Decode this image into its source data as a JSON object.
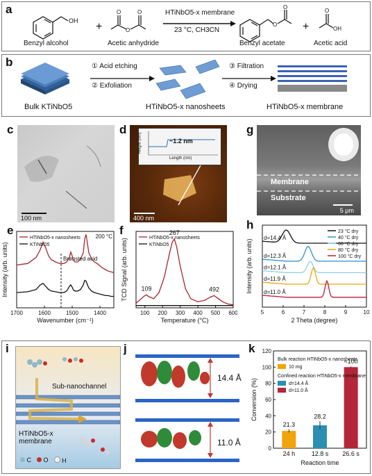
{
  "figure": {
    "panel_letters": [
      "a",
      "b",
      "c",
      "d",
      "e",
      "f",
      "g",
      "h",
      "i",
      "j",
      "k"
    ]
  },
  "panel_a": {
    "catalyst": "HTiNbO5-x membrane",
    "conditions": "23 °C, CH3CN",
    "reactants": [
      "Benzyl alcohol",
      "Acetic anhydride"
    ],
    "products": [
      "Benzyl acetate",
      "Acetic acid"
    ],
    "plus": "+"
  },
  "panel_b": {
    "steps": [
      "① Acid etching",
      "② Exfoliation",
      "③ Filtration",
      "④ Drying"
    ],
    "labels": [
      "Bulk KTiNbO5",
      "HTiNbO5-x nanosheets",
      "HTiNbO5-x membrane"
    ]
  },
  "panel_c": {
    "scale": "100 nm"
  },
  "panel_d": {
    "scale": "400 nm",
    "inset_height": "~1.2 nm",
    "inset_xlabel": "Length (nm)",
    "inset_ylabel": "Height (nm)",
    "inset_xticks": [
      "0",
      "200",
      "400",
      "600",
      "800"
    ],
    "inset_yticks": [
      "0.0",
      "0.5",
      "1.0",
      "1.5"
    ]
  },
  "panel_g": {
    "membrane_label": "Membrane",
    "substrate_label": "Substrate",
    "scale": "5 μm"
  },
  "panel_i": {
    "channel_label": "Sub-nanochannel",
    "membrane_label": "HTiNbO5-x membrane",
    "legend": [
      {
        "symbol": "C",
        "color": "#8fb8c8"
      },
      {
        "symbol": "O",
        "color": "#cc2a2a"
      },
      {
        "symbol": "H",
        "color": "#f2f2f2"
      }
    ]
  },
  "panel_j": {
    "spacings": [
      "14.4 Å",
      "11.0 Å"
    ]
  },
  "chart_data": [
    {
      "panel": "e",
      "type": "line",
      "xlabel": "Wavenumber (cm⁻¹)",
      "ylabel": "Intensity (arb. units)",
      "xlim": [
        1700,
        1350
      ],
      "xticks": [
        1700,
        1600,
        1500,
        1400
      ],
      "annotation": "Brønsted acid",
      "annotation_line_x": 1540,
      "temperature_label": "200 °C",
      "series": [
        {
          "name": "HTiNbO5-x nanosheets",
          "color": "#a5262f",
          "x": [
            1700,
            1660,
            1630,
            1615,
            1605,
            1595,
            1585,
            1575,
            1560,
            1545,
            1530,
            1520,
            1510,
            1505,
            1500,
            1495,
            1490,
            1480,
            1470,
            1460,
            1455,
            1450,
            1445,
            1440,
            1430,
            1420,
            1410,
            1400,
            1390,
            1380,
            1370,
            1360,
            1350
          ],
          "y": [
            0.56,
            0.58,
            0.66,
            0.76,
            0.86,
            0.78,
            0.68,
            0.63,
            0.6,
            0.58,
            0.58,
            0.6,
            0.66,
            0.73,
            0.68,
            0.62,
            0.6,
            0.6,
            0.64,
            0.72,
            0.9,
            0.96,
            0.84,
            0.72,
            0.64,
            0.6,
            0.58,
            0.55,
            0.52,
            0.5,
            0.48,
            0.47,
            0.46
          ]
        },
        {
          "name": "KTiNbO5",
          "color": "#111111",
          "x": [
            1700,
            1660,
            1630,
            1615,
            1605,
            1595,
            1585,
            1575,
            1560,
            1545,
            1530,
            1520,
            1510,
            1505,
            1500,
            1495,
            1490,
            1480,
            1470,
            1460,
            1455,
            1450,
            1445,
            1440,
            1430,
            1420,
            1410,
            1400,
            1390,
            1380,
            1370,
            1360,
            1350
          ],
          "y": [
            0.2,
            0.21,
            0.24,
            0.3,
            0.32,
            0.28,
            0.24,
            0.22,
            0.21,
            0.2,
            0.2,
            0.22,
            0.28,
            0.3,
            0.27,
            0.23,
            0.22,
            0.22,
            0.24,
            0.3,
            0.36,
            0.35,
            0.3,
            0.26,
            0.22,
            0.2,
            0.19,
            0.18,
            0.17,
            0.16,
            0.16,
            0.15,
            0.15
          ]
        }
      ]
    },
    {
      "panel": "f",
      "type": "line",
      "xlabel": "Temperature (°C)",
      "ylabel": "TCD Signal (arb. units)",
      "xlim": [
        50,
        600
      ],
      "xticks": [
        100,
        200,
        300,
        400,
        500,
        600
      ],
      "peak_labels": [
        {
          "x": 109,
          "label": "109"
        },
        {
          "x": 267,
          "label": "267"
        },
        {
          "x": 492,
          "label": "492"
        }
      ],
      "series": [
        {
          "name": "HTiNbO5-x nanosheets",
          "color": "#a5262f",
          "x": [
            50,
            80,
            100,
            109,
            120,
            150,
            180,
            210,
            240,
            255,
            267,
            280,
            300,
            330,
            360,
            400,
            440,
            470,
            492,
            510,
            540,
            570,
            600
          ],
          "y": [
            0.06,
            0.12,
            0.16,
            0.17,
            0.15,
            0.12,
            0.2,
            0.4,
            0.72,
            0.86,
            0.9,
            0.8,
            0.55,
            0.25,
            0.12,
            0.08,
            0.1,
            0.14,
            0.16,
            0.13,
            0.08,
            0.05,
            0.04
          ]
        },
        {
          "name": "KTiNbO5",
          "color": "#111111",
          "x": [
            50,
            100,
            200,
            300,
            400,
            500,
            600
          ],
          "y": [
            0.03,
            0.03,
            0.03,
            0.03,
            0.03,
            0.03,
            0.03
          ]
        }
      ]
    },
    {
      "panel": "h",
      "type": "line",
      "xlabel": "2 Theta (degree)",
      "ylabel": "Intensity (arb. units)",
      "xlim": [
        5,
        10
      ],
      "xticks": [
        5,
        6,
        7,
        8,
        9,
        10
      ],
      "d_labels": [
        "d=14.4 Å",
        "d=12.3 Å",
        "d=12.1 Å",
        "d=11.9 Å",
        "d=11.0 Å"
      ],
      "series": [
        {
          "name": "23 °C dry",
          "color": "#111111",
          "peak": 6.15,
          "offset": 0.78,
          "amp": 0.16,
          "width": 0.55
        },
        {
          "name": "40 °C dry",
          "color": "#2b8fd0",
          "peak": 7.2,
          "offset": 0.56,
          "amp": 0.18,
          "width": 0.45
        },
        {
          "name": "60 °C dry",
          "color": "#8fd0dc",
          "peak": 7.3,
          "offset": 0.42,
          "amp": 0.14,
          "width": 0.4
        },
        {
          "name": "80 °C dry",
          "color": "#f2a40c",
          "peak": 7.45,
          "offset": 0.28,
          "amp": 0.2,
          "width": 0.3
        },
        {
          "name": "100 °C dry",
          "color": "#c0183a",
          "peak": 8.1,
          "offset": 0.12,
          "amp": 0.2,
          "width": 0.25
        }
      ]
    },
    {
      "panel": "k",
      "type": "bar",
      "xlabel": "Reaction time",
      "ylabel": "Conversion (%)",
      "ylim": [
        0,
        120
      ],
      "yticks": [
        0,
        20,
        40,
        60,
        80,
        100,
        120
      ],
      "categories": [
        "24 h",
        "12.8 s",
        "26.6 s"
      ],
      "values": [
        21.3,
        28.2,
        100
      ],
      "value_labels": [
        "21.3",
        "28.2",
        "≈100"
      ],
      "errors": [
        2,
        5,
        1
      ],
      "colors": [
        "#f2a40c",
        "#2b8fb3",
        "#b5263a"
      ],
      "legend": {
        "bulk_title": "Bulk reaction HTiNbO5-x nanosheets",
        "bulk_items": [
          {
            "label": "10 mg",
            "color": "#f2a40c"
          }
        ],
        "confined_title": "Confined reaction HTiNbO5-x membrane",
        "confined_items": [
          {
            "label": "d=14.4 Å",
            "color": "#2b8fb3"
          },
          {
            "label": "d=11.0 Å",
            "color": "#b5263a"
          }
        ]
      }
    }
  ]
}
